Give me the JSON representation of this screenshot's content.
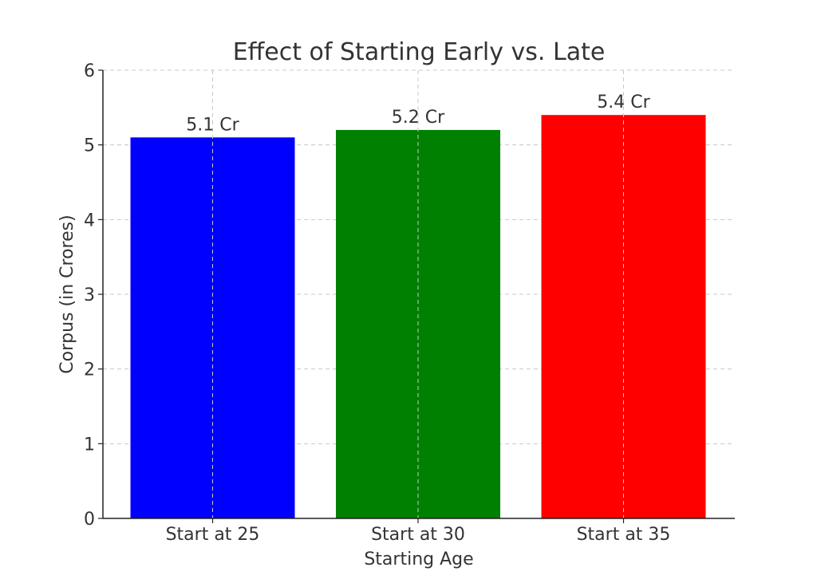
{
  "chart_data": {
    "type": "bar",
    "title": "Effect of Starting Early vs. Late",
    "xlabel": "Starting Age",
    "ylabel": "Corpus (in Crores)",
    "categories": [
      "Start at 25",
      "Start at 30",
      "Start at 35"
    ],
    "values": [
      5.1,
      5.2,
      5.4
    ],
    "data_labels": [
      "5.1 Cr",
      "5.2 Cr",
      "5.4 Cr"
    ],
    "colors": [
      "#0000ff",
      "#008000",
      "#ff0000"
    ],
    "ylim": [
      0,
      6
    ],
    "yticks": [
      0,
      1,
      2,
      3,
      4,
      5,
      6
    ],
    "grid": true,
    "legend": null
  }
}
